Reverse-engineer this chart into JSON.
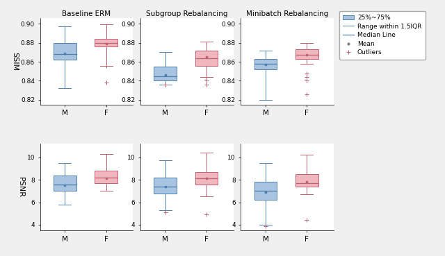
{
  "titles": [
    "Baseline ERM",
    "Subgroup Rebalancing",
    "Minibatch Rebalancing"
  ],
  "row_labels": [
    "SSIM",
    "PSNR"
  ],
  "group_labels": [
    "M",
    "F"
  ],
  "blue_face": "#a8c4e0",
  "red_face": "#f0b8be",
  "blue_edge": "#5080b0",
  "red_edge": "#c06070",
  "blue_median": "#5080b0",
  "red_median": "#c06070",
  "plot_bg": "#ffffff",
  "fig_bg": "#f0f0f0",
  "ssim": {
    "baseline": {
      "M": {
        "q1": 0.862,
        "median": 0.868,
        "q3": 0.88,
        "whislo": 0.832,
        "whishi": 0.897,
        "mean": 0.869,
        "fliers": []
      },
      "F": {
        "q1": 0.876,
        "median": 0.88,
        "q3": 0.884,
        "whislo": 0.856,
        "whishi": 0.899,
        "mean": 0.879,
        "fliers": [
          0.856,
          0.838
        ]
      }
    },
    "subgroup": {
      "M": {
        "q1": 0.84,
        "median": 0.845,
        "q3": 0.855,
        "whislo": 0.836,
        "whishi": 0.87,
        "mean": 0.846,
        "fliers": [
          0.836
        ]
      },
      "F": {
        "q1": 0.856,
        "median": 0.864,
        "q3": 0.872,
        "whislo": 0.844,
        "whishi": 0.881,
        "mean": 0.865,
        "fliers": [
          0.844,
          0.84,
          0.836
        ]
      }
    },
    "minibatch": {
      "M": {
        "q1": 0.852,
        "median": 0.858,
        "q3": 0.863,
        "whislo": 0.82,
        "whishi": 0.872,
        "mean": 0.857,
        "fliers": []
      },
      "F": {
        "q1": 0.863,
        "median": 0.867,
        "q3": 0.873,
        "whislo": 0.858,
        "whishi": 0.88,
        "mean": 0.867,
        "fliers": [
          0.848,
          0.844,
          0.84,
          0.826
        ]
      }
    }
  },
  "psnr": {
    "baseline": {
      "M": {
        "q1": 7.0,
        "median": 7.6,
        "q3": 8.4,
        "whislo": 5.8,
        "whishi": 9.5,
        "mean": 7.5,
        "fliers": []
      },
      "F": {
        "q1": 7.7,
        "median": 8.2,
        "q3": 8.8,
        "whislo": 7.0,
        "whishi": 10.3,
        "mean": 8.1,
        "fliers": []
      }
    },
    "subgroup": {
      "M": {
        "q1": 6.8,
        "median": 7.4,
        "q3": 8.2,
        "whislo": 5.3,
        "whishi": 9.7,
        "mean": 7.4,
        "fliers": [
          5.1
        ]
      },
      "F": {
        "q1": 7.6,
        "median": 8.1,
        "q3": 8.7,
        "whislo": 6.5,
        "whishi": 10.4,
        "mean": 8.1,
        "fliers": [
          4.9
        ]
      }
    },
    "minibatch": {
      "M": {
        "q1": 6.2,
        "median": 7.0,
        "q3": 7.8,
        "whislo": 4.0,
        "whishi": 9.5,
        "mean": 6.9,
        "fliers": [
          3.9
        ]
      },
      "F": {
        "q1": 7.4,
        "median": 7.7,
        "q3": 8.5,
        "whislo": 6.7,
        "whishi": 10.2,
        "mean": 7.8,
        "fliers": [
          4.4
        ]
      }
    }
  },
  "ssim_ylim": [
    0.815,
    0.906
  ],
  "ssim_yticks": [
    0.82,
    0.84,
    0.86,
    0.88,
    0.9
  ],
  "psnr_ylim": [
    3.5,
    11.2
  ],
  "psnr_yticks": [
    4,
    6,
    8,
    10
  ],
  "legend_items": [
    "25%~75%",
    "Range within 1.5IQR",
    "Median Line",
    "Mean",
    "Outliers"
  ]
}
